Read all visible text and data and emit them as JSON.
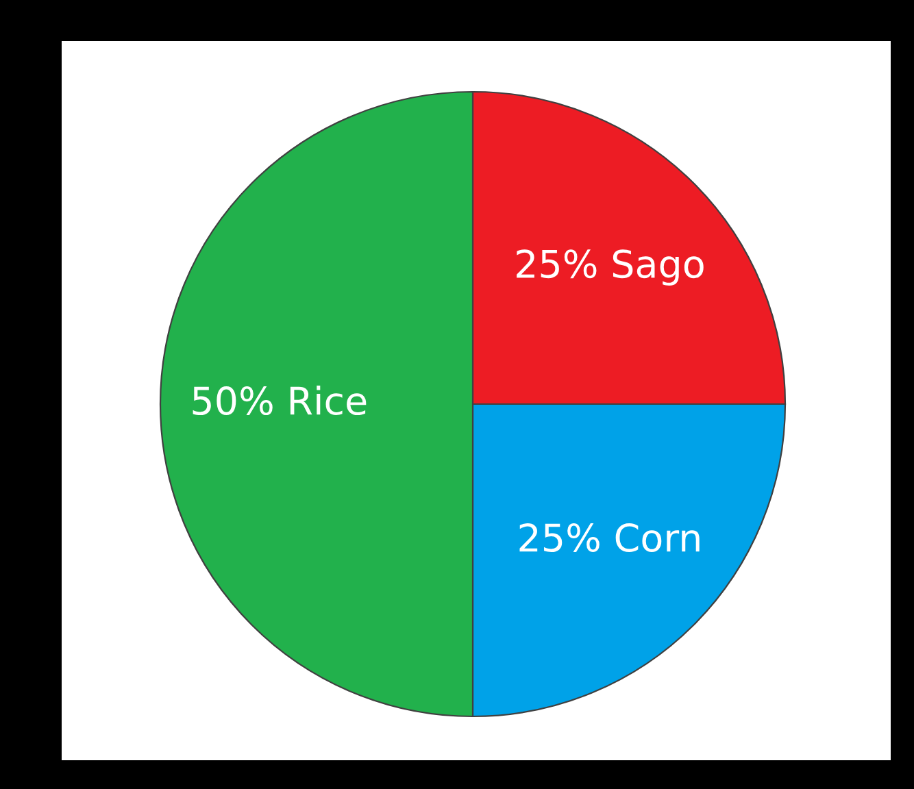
{
  "chart_data": {
    "type": "pie",
    "categories": [
      "Sago",
      "Corn",
      "Rice"
    ],
    "values": [
      25,
      25,
      50
    ],
    "value_labels": [
      "25%",
      "25%",
      "50%"
    ],
    "colors": [
      "#ed1c24",
      "#00a2e8",
      "#22b14c"
    ]
  }
}
